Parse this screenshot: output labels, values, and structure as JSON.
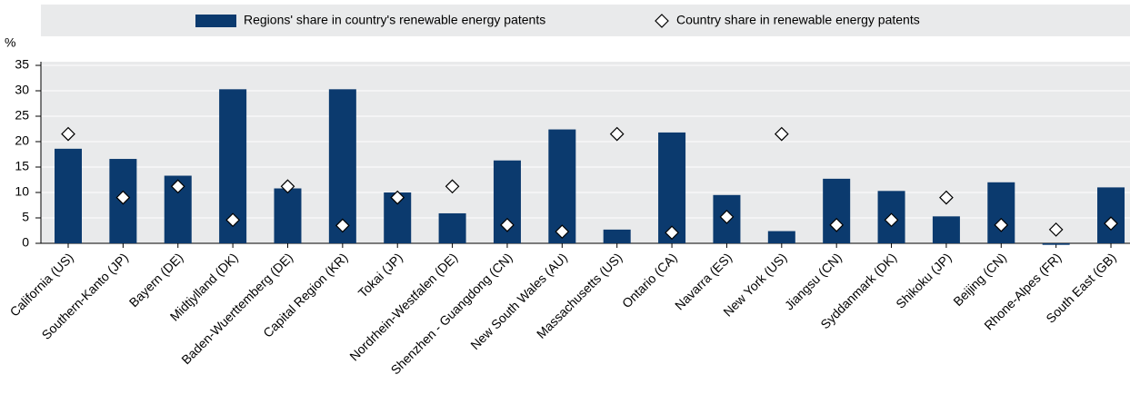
{
  "chart_data": {
    "type": "bar",
    "y_label": "%",
    "categories": [
      "California (US)",
      "Southern-Kanto (JP)",
      "Bayern (DE)",
      "Midtjylland (DK)",
      "Baden-Wuerttemberg (DE)",
      "Capital Region (KR)",
      "Tokai (JP)",
      "Nordrhein-Westfalen (DE)",
      "Shenzhen - Guangdong (CN)",
      "New South Wales (AU)",
      "Massachusetts (US)",
      "Ontario (CA)",
      "Navarra (ES)",
      "New York (US)",
      "Jiangsu (CN)",
      "Syddanmark (DK)",
      "Shikoku (JP)",
      "Beijing (CN)",
      "Rhone-Alpes (FR)",
      "South East (GB)"
    ],
    "series": [
      {
        "name": "Regions' share in country's renewable energy patents",
        "color": "#0b3a6e",
        "marker": "bar",
        "values": [
          18.6,
          16.6,
          13.3,
          30.3,
          10.8,
          30.3,
          10.0,
          5.9,
          16.3,
          22.4,
          2.7,
          21.8,
          9.5,
          2.4,
          12.7,
          10.3,
          5.3,
          12.0,
          -0.3,
          11.0
        ]
      },
      {
        "name": "Country share in renewable energy patents",
        "color": "#ffffff",
        "marker": "diamond",
        "values": [
          21.5,
          9.0,
          11.2,
          4.6,
          11.2,
          3.5,
          9.0,
          11.2,
          3.6,
          2.3,
          21.5,
          2.1,
          5.2,
          21.5,
          3.6,
          4.6,
          9.0,
          3.6,
          2.7,
          3.9
        ]
      }
    ],
    "ylim": [
      0,
      35
    ],
    "yticks": [
      0,
      5,
      10,
      15,
      20,
      25,
      30,
      35
    ],
    "grid": true
  }
}
